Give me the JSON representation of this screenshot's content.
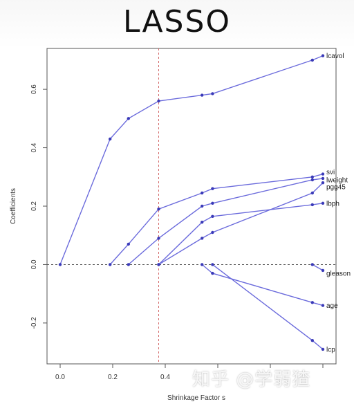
{
  "header": {
    "title": "LASSO"
  },
  "watermark": "知乎 @学弱猹",
  "colors": {
    "line": "#6b6bdc",
    "marker": "#3a3ab8",
    "zero_line": "#555555",
    "vline": "#d46a6a"
  },
  "chart_data": {
    "type": "line",
    "xlabel": "Shrinkage Factor s",
    "ylabel": "Coefficients",
    "xlim": [
      -0.05,
      1.05
    ],
    "ylim": [
      -0.34,
      0.74
    ],
    "x_ticks": [
      0.0,
      0.2,
      0.4,
      0.6,
      0.8,
      1.0
    ],
    "x_tick_labels": [
      "0.0",
      "0.2",
      "0.4",
      "",
      "",
      ""
    ],
    "y_ticks": [
      -0.2,
      0.0,
      0.2,
      0.4,
      0.6
    ],
    "y_tick_labels": [
      "-0.2",
      "0.0",
      "0.2",
      "0.4",
      "0.6"
    ],
    "vertical_reference_line": 0.375,
    "horizontal_reference_line": 0.0,
    "series": [
      {
        "name": "lcavol",
        "x": [
          0.0,
          0.19,
          0.26,
          0.375,
          0.54,
          0.58,
          0.96,
          1.0
        ],
        "y": [
          0.0,
          0.43,
          0.5,
          0.56,
          0.58,
          0.585,
          0.7,
          0.715
        ]
      },
      {
        "name": "svi",
        "x": [
          0.19,
          0.26,
          0.375,
          0.54,
          0.58,
          0.96,
          1.0
        ],
        "y": [
          0.0,
          0.07,
          0.19,
          0.245,
          0.26,
          0.3,
          0.31
        ]
      },
      {
        "name": "lweight",
        "x": [
          0.26,
          0.375,
          0.54,
          0.58,
          0.96,
          1.0
        ],
        "y": [
          0.0,
          0.09,
          0.2,
          0.21,
          0.29,
          0.295
        ]
      },
      {
        "name": "pgg45",
        "x": [
          0.375,
          0.54,
          0.58,
          0.96,
          1.0
        ],
        "y": [
          0.0,
          0.09,
          0.11,
          0.245,
          0.28
        ]
      },
      {
        "name": "lbph",
        "x": [
          0.375,
          0.54,
          0.58,
          0.96,
          1.0
        ],
        "y": [
          0.0,
          0.145,
          0.165,
          0.205,
          0.21
        ]
      },
      {
        "name": "gleason",
        "x": [
          0.96,
          1.0
        ],
        "y": [
          0.0,
          -0.02
        ]
      },
      {
        "name": "age",
        "x": [
          0.54,
          0.58,
          0.96,
          1.0
        ],
        "y": [
          0.0,
          -0.03,
          -0.13,
          -0.14
        ]
      },
      {
        "name": "lcp",
        "x": [
          0.58,
          0.96,
          1.0
        ],
        "y": [
          0.0,
          -0.26,
          -0.29
        ]
      }
    ]
  }
}
